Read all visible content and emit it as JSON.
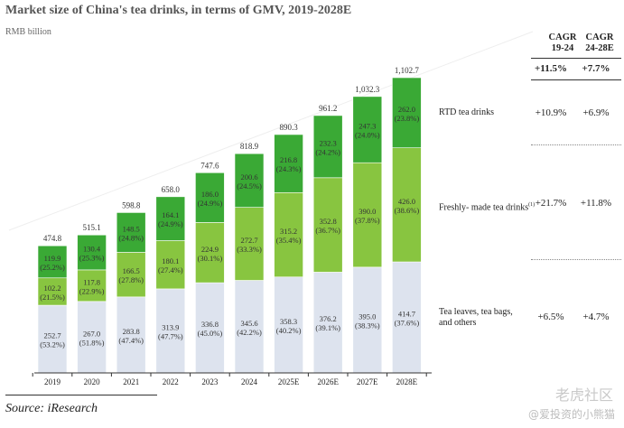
{
  "chart_data": {
    "type": "bar",
    "stacked": true,
    "title": "Market size of China's tea drinks, in terms of GMV, 2019-2028E",
    "unit": "RMB billion",
    "categories": [
      "2019",
      "2020",
      "2021",
      "2022",
      "2023",
      "2024",
      "2025E",
      "2026E",
      "2027E",
      "2028E"
    ],
    "totals": [
      "474.8",
      "515.1",
      "598.8",
      "658.0",
      "747.6",
      "818.9",
      "890.3",
      "961.2",
      "1,032.3",
      "1,102.7"
    ],
    "ylim": [
      0,
      1150
    ],
    "series": [
      {
        "name": "Tea leaves, tea bags, and others",
        "color": "#dde3ee",
        "values": [
          252.7,
          267.0,
          283.8,
          313.9,
          336.8,
          345.6,
          358.3,
          376.2,
          395.0,
          414.7
        ],
        "labels": [
          "252.7",
          "267.0",
          "283.8",
          "313.9",
          "336.8",
          "345.6",
          "358.3",
          "376.2",
          "395.0",
          "414.7"
        ],
        "shares": [
          "(53.2%)",
          "(51.8%)",
          "(47.4%)",
          "(47.7%)",
          "(45.0%)",
          "(42.2%)",
          "(40.2%)",
          "(39.1%)",
          "(38.3%)",
          "(37.6%)"
        ]
      },
      {
        "name": "Freshly- made tea drinks",
        "color": "#88c540",
        "values": [
          102.2,
          117.8,
          166.5,
          180.1,
          224.9,
          272.7,
          315.2,
          352.8,
          390.0,
          426.0
        ],
        "labels": [
          "102.2",
          "117.8",
          "166.5",
          "180.1",
          "224.9",
          "272.7",
          "315.2",
          "352.8",
          "390.0",
          "426.0"
        ],
        "shares": [
          "(21.5%)",
          "(22.9%)",
          "(27.8%)",
          "(27.4%)",
          "(30.1%)",
          "(33.3%)",
          "(35.4%)",
          "(36.7%)",
          "(37.8%)",
          "(38.6%)"
        ]
      },
      {
        "name": "RTD tea drinks",
        "color": "#3aa935",
        "values": [
          119.9,
          130.4,
          148.5,
          164.1,
          186.0,
          200.6,
          216.8,
          232.3,
          247.3,
          262.0
        ],
        "labels": [
          "119.9",
          "130.4",
          "148.5",
          "164.1",
          "186.0",
          "200.6",
          "216.8",
          "232.3",
          "247.3",
          "262.0"
        ],
        "shares": [
          "(25.2%)",
          "(25.3%)",
          "(24.8%)",
          "(24.9%)",
          "(24.9%)",
          "(24.5%)",
          "(24.3%)",
          "(24.2%)",
          "(24.0%)",
          "(23.8%)"
        ]
      }
    ]
  },
  "legend": {
    "rtd": "RTD tea drinks",
    "fresh": "Freshly- made tea drinks",
    "fresh_note": "(1)",
    "leaves_line1": "Tea leaves, tea bags,",
    "leaves_line2": "and others"
  },
  "cagr": {
    "header1_line1": "CAGR",
    "header1_line2": "19-24",
    "header2_line1": "CAGR",
    "header2_line2": "24-28E",
    "total": [
      "+11.5%",
      "+7.7%"
    ],
    "rtd": [
      "+10.9%",
      "+6.9%"
    ],
    "fresh": [
      "+21.7%",
      "+11.8%"
    ],
    "leaves": [
      "+6.5%",
      "+4.7%"
    ]
  },
  "header": {
    "title": "Market size of China's tea drinks, in terms of GMV, 2019-2028E",
    "unit": "RMB billion"
  },
  "source": "Source: iResearch",
  "watermark": {
    "line1": "老虎社区",
    "line2": "@爱投资的小熊猫"
  }
}
